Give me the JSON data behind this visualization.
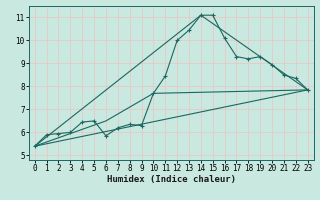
{
  "xlabel": "Humidex (Indice chaleur)",
  "xlim": [
    -0.5,
    23.5
  ],
  "ylim": [
    4.8,
    11.5
  ],
  "x_ticks": [
    0,
    1,
    2,
    3,
    4,
    5,
    6,
    7,
    8,
    9,
    10,
    11,
    12,
    13,
    14,
    15,
    16,
    17,
    18,
    19,
    20,
    21,
    22,
    23
  ],
  "y_ticks": [
    5,
    6,
    7,
    8,
    9,
    10,
    11
  ],
  "bg_color": "#c8e8e0",
  "grid_color": "#e8c8c8",
  "line_color": "#1a6860",
  "line1_x": [
    0,
    1,
    2,
    3,
    4,
    5,
    6,
    7,
    8,
    9,
    10,
    11,
    12,
    13,
    14,
    15,
    16,
    17,
    18,
    19,
    20,
    21,
    22,
    23
  ],
  "line1_y": [
    5.4,
    5.9,
    5.95,
    6.0,
    6.45,
    6.5,
    5.85,
    6.2,
    6.35,
    6.3,
    7.7,
    8.45,
    10.0,
    10.45,
    11.1,
    11.1,
    10.1,
    9.3,
    9.2,
    9.3,
    8.95,
    8.5,
    8.35,
    7.85
  ],
  "line2_x": [
    0,
    23
  ],
  "line2_y": [
    5.4,
    7.85
  ],
  "line3_x": [
    0,
    6,
    10,
    23
  ],
  "line3_y": [
    5.4,
    6.5,
    7.7,
    7.85
  ],
  "line4_x": [
    0,
    14,
    23
  ],
  "line4_y": [
    5.4,
    11.1,
    7.85
  ],
  "tick_fontsize": 5.5,
  "xlabel_fontsize": 6.5,
  "lw": 0.8,
  "ms": 3.5
}
